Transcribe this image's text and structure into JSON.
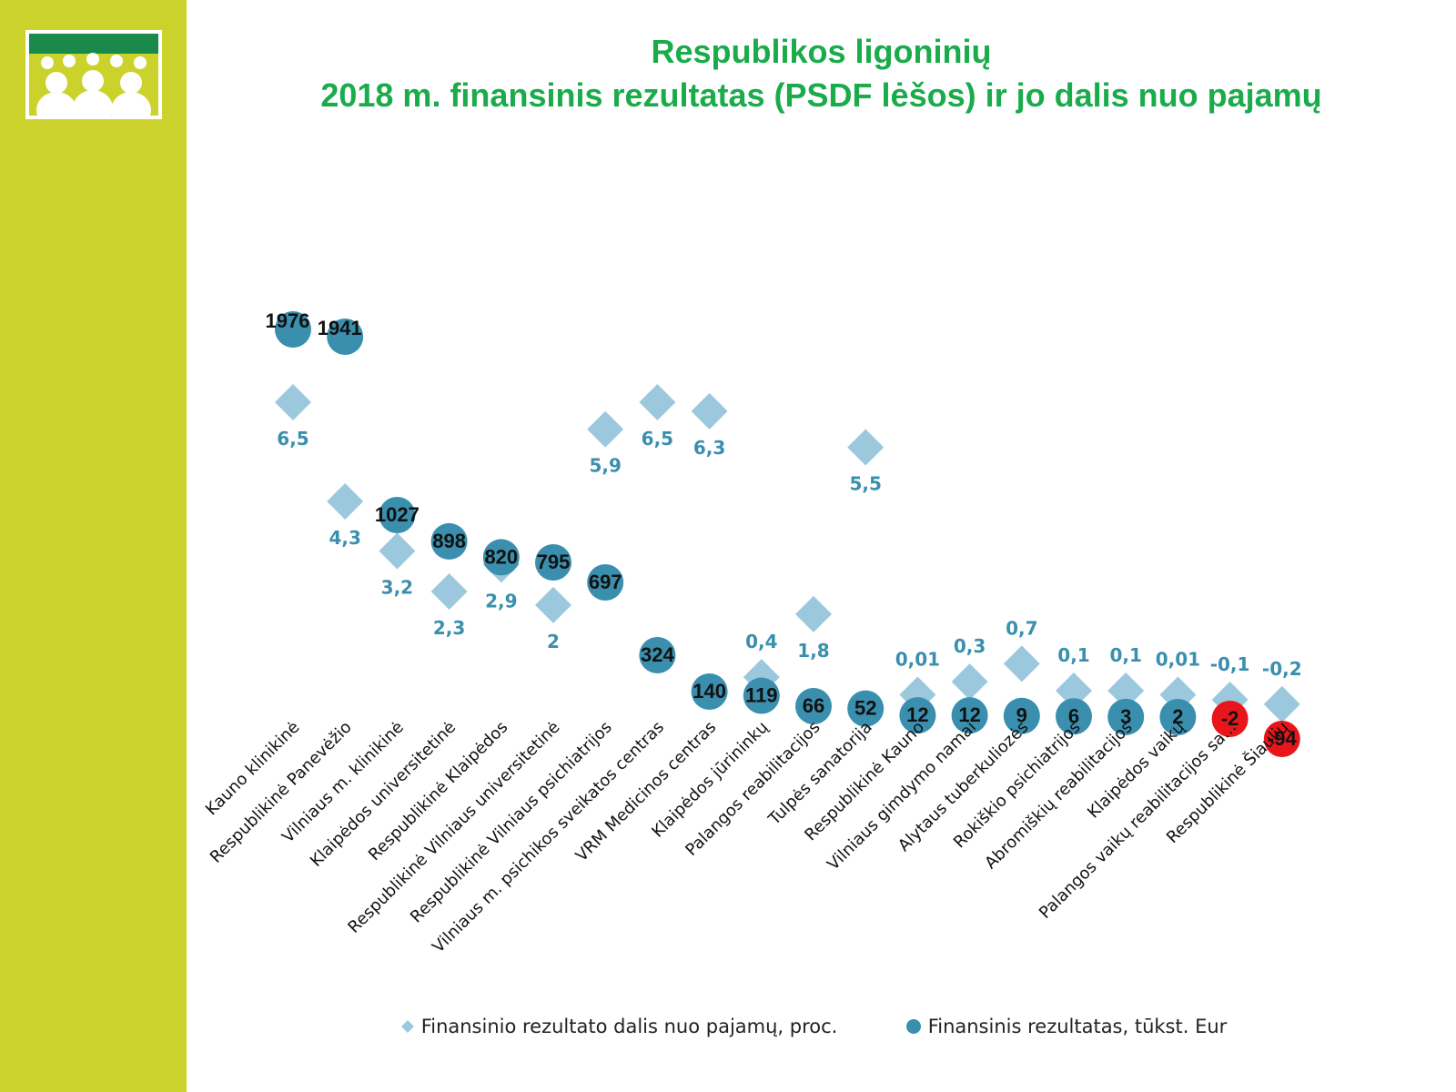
{
  "title": {
    "line1": "Respublikos ligoninių",
    "line2": "2018 m. finansinis rezultatas (PSDF lėšos) ir jo dalis nuo pajamų"
  },
  "legend": {
    "percent": "Finansinio rezultato dalis nuo pajamų, proc.",
    "result": "Finansinis rezultatas, tūkst. Eur"
  },
  "colors": {
    "sidebar": "#cbd22c",
    "title": "#1aab4b",
    "diamond": "#9cc8de",
    "circle": "#3a8fae",
    "negative": "#e8161b",
    "percent_label": "#3a8fae"
  },
  "chart_data": {
    "type": "scatter",
    "categories": [
      "Kauno klinikinė",
      "Respublikinė Panevėžio",
      "Vilniaus m. klinikinė",
      "Klaipėdos universitetinė",
      "Respublikinė Klaipėdos",
      "Respublikinė Vilniaus universitetinė",
      "Respublikinė Vilniaus psichiatrijos",
      "Vilniaus m. psichikos sveikatos centras",
      "VRM Medicinos centras",
      "Klaipėdos jūrininkų",
      "Palangos reabilitacijos",
      "Tulpės sanatorija",
      "Respublikinė Kauno",
      "Vilniaus gimdymo namai",
      "Alytaus tuberkuliozės",
      "Rokiškio psichiatrijos",
      "Abromiškių reabilitacijos",
      "Klaipėdos vaikų",
      "Palangos vaikų reabilitacijos sa...",
      "Respublikinė Šiaulių"
    ],
    "series": [
      {
        "name": "Finansinio rezultato dalis nuo pajamų, proc.",
        "marker": "diamond",
        "values": [
          6.5,
          4.3,
          3.2,
          2.3,
          2.9,
          2,
          5.9,
          6.5,
          6.3,
          0.4,
          1.8,
          5.5,
          0.01,
          0.3,
          0.7,
          0.1,
          0.1,
          0.01,
          -0.1,
          -0.2
        ],
        "labels": [
          "6,5",
          "4,3",
          "3,2",
          "2,3",
          "2,9",
          "2",
          "5,9",
          "6,5",
          "6,3",
          "0,4",
          "1,8",
          "5,5",
          "0,01",
          "0,3",
          "0,7",
          "0,1",
          "0,1",
          "0,01",
          "-0,1",
          "-0,2"
        ]
      },
      {
        "name": "Finansinis rezultatas, tūkst. Eur",
        "marker": "circle",
        "values": [
          1976,
          1941,
          1027,
          898,
          820,
          795,
          697,
          324,
          140,
          119,
          66,
          52,
          12,
          12,
          9,
          6,
          3,
          2,
          -2,
          -94
        ],
        "labels": [
          "1976",
          "1941",
          "1027",
          "898",
          "820",
          "795",
          "697",
          "324",
          "140",
          "119",
          "66",
          "52",
          "12",
          "12",
          "9",
          "6",
          "3",
          "2",
          "-2",
          "-94"
        ]
      }
    ]
  }
}
